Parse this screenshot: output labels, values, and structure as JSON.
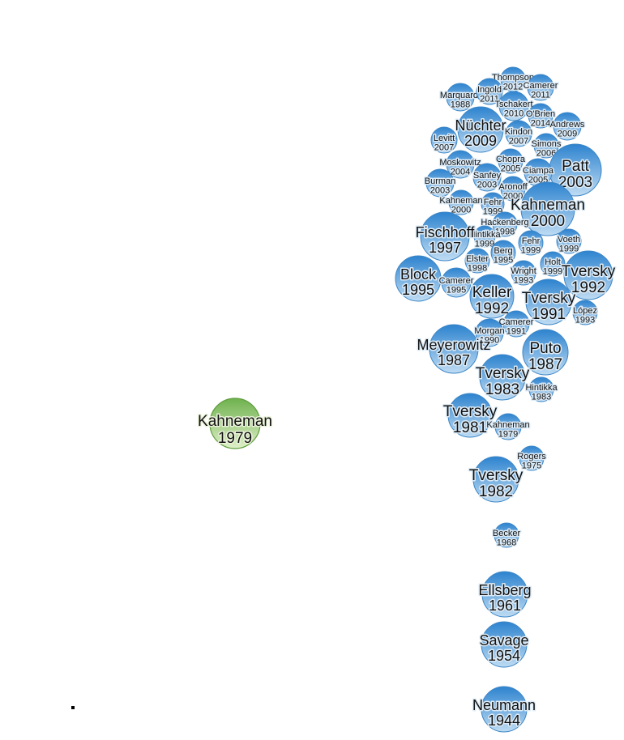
{
  "colors": {
    "node_fill_top": "#2d83cf",
    "node_fill_bottom": "#bfdcf3",
    "node_stroke": "#3d86c6",
    "label_halo": "#dcebf7",
    "focus_fill_top": "#6fb14e",
    "focus_fill_bottom": "#dff0c9",
    "focus_stroke": "#5e9e3c",
    "focus_halo": "#eaf3da"
  },
  "focus_paper": {
    "author": "Kahneman",
    "year": "1979"
  },
  "papers": [
    {
      "author": "Thompson",
      "year": "2012"
    },
    {
      "author": "Marquardt",
      "year": "1988"
    },
    {
      "author": "Ingold",
      "year": "2011"
    },
    {
      "author": "Camerer",
      "year": "2011"
    },
    {
      "author": "Tschakert",
      "year": "2010"
    },
    {
      "author": "O'Brien",
      "year": "2014"
    },
    {
      "author": "Nüchter",
      "year": "2009"
    },
    {
      "author": "Andrews",
      "year": "2009"
    },
    {
      "author": "Kindon",
      "year": "2007"
    },
    {
      "author": "Levitt",
      "year": "2007"
    },
    {
      "author": "Simons",
      "year": "2006"
    },
    {
      "author": "Moskowitz",
      "year": "2004"
    },
    {
      "author": "Chopra",
      "year": "2005"
    },
    {
      "author": "Patt",
      "year": "2003"
    },
    {
      "author": "Sanfey",
      "year": "2003"
    },
    {
      "author": "Ciampa",
      "year": "2005"
    },
    {
      "author": "Burman",
      "year": "2003"
    },
    {
      "author": "Aronoff",
      "year": "2000"
    },
    {
      "author": "Kahneman",
      "year": "2000"
    },
    {
      "author": "Fehr",
      "year": "1999"
    },
    {
      "author": "Kahneman",
      "year": "2000"
    },
    {
      "author": "Hackenberg",
      "year": "1998"
    },
    {
      "author": "Hintikka",
      "year": "1999"
    },
    {
      "author": "Fischhoff",
      "year": "1997"
    },
    {
      "author": "Voeth",
      "year": "1999"
    },
    {
      "author": "Fehr",
      "year": "1999"
    },
    {
      "author": "Berg",
      "year": "1995"
    },
    {
      "author": "Elster",
      "year": "1998"
    },
    {
      "author": "Holt",
      "year": "1999"
    },
    {
      "author": "Tversky",
      "year": "1992"
    },
    {
      "author": "Block",
      "year": "1995"
    },
    {
      "author": "Camerer",
      "year": "1995"
    },
    {
      "author": "Wright",
      "year": "1993"
    },
    {
      "author": "Keller",
      "year": "1992"
    },
    {
      "author": "Tversky",
      "year": "1991"
    },
    {
      "author": "López",
      "year": "1993"
    },
    {
      "author": "Camerer",
      "year": "1991"
    },
    {
      "author": "Morgan",
      "year": "1990"
    },
    {
      "author": "Meyerowitz",
      "year": "1987"
    },
    {
      "author": "Puto",
      "year": "1987"
    },
    {
      "author": "Tversky",
      "year": "1983"
    },
    {
      "author": "Hintikka",
      "year": "1983"
    },
    {
      "author": "Tversky",
      "year": "1981"
    },
    {
      "author": "Kahneman",
      "year": "1979"
    },
    {
      "author": "Rogers",
      "year": "1975"
    },
    {
      "author": "Tversky",
      "year": "1982"
    },
    {
      "author": "Becker",
      "year": "1968"
    },
    {
      "author": "Ellsberg",
      "year": "1961"
    },
    {
      "author": "Savage",
      "year": "1954"
    },
    {
      "author": "Neumann",
      "year": "1944"
    }
  ]
}
